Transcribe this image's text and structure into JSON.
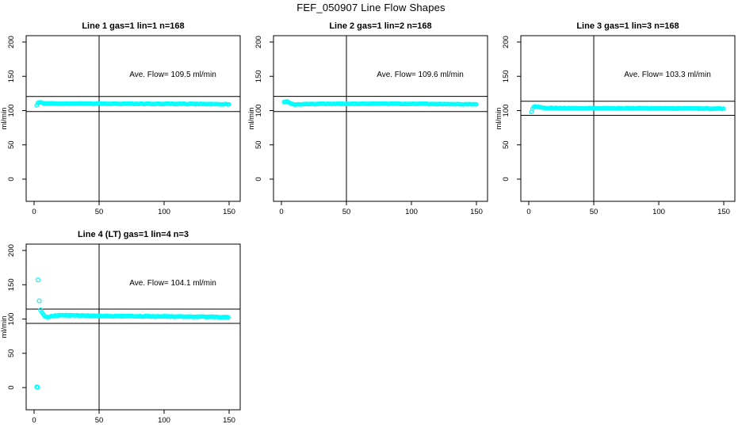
{
  "title": "FEF_050907  Line Flow Shapes",
  "colors": {
    "points": "#00FFFF",
    "axis": "#000000",
    "background": "#FFFFFF"
  },
  "chart_data": {
    "type": "scatter",
    "title": "FEF_050907  Line Flow Shapes",
    "shared_axes": {
      "xlim": [
        0,
        150
      ],
      "ylim": [
        0,
        200
      ],
      "xticks": [
        0,
        50,
        100,
        150
      ],
      "yticks": [
        0,
        50,
        100,
        150,
        200
      ],
      "xlabel": "",
      "ylabel": "ml/min",
      "vline_x": 50,
      "grid": false,
      "marker": "open-circle",
      "marker_color": "#00FFFF"
    },
    "panels": [
      {
        "name": "line-1",
        "title": "Line 1 gas=1 lin=1 n=168",
        "gas": 1,
        "lin": 1,
        "n": 168,
        "ave_flow_ml_min": 109.5,
        "annotation": "Ave. Flow=  109.5  ml/min",
        "hlines": [
          120.5,
          98.6
        ],
        "keyframes": [
          [
            2,
            107.3
          ],
          [
            3,
            111.8
          ],
          [
            5,
            112.3
          ],
          [
            7,
            111.0
          ],
          [
            10,
            110.3
          ],
          [
            20,
            110.2
          ],
          [
            50,
            110.1
          ],
          [
            100,
            109.8
          ],
          [
            130,
            109.6
          ],
          [
            150,
            109.4
          ]
        ],
        "outliers": [],
        "jitter": 0.45
      },
      {
        "name": "line-2",
        "title": "Line 2 gas=1 lin=2 n=168",
        "gas": 1,
        "lin": 2,
        "n": 168,
        "ave_flow_ml_min": 109.6,
        "annotation": "Ave. Flow=  109.6  ml/min",
        "hlines": [
          120.6,
          98.6
        ],
        "keyframes": [
          [
            2,
            112.8
          ],
          [
            4,
            113.3
          ],
          [
            5,
            112.5
          ],
          [
            7,
            110.8
          ],
          [
            9,
            108.9
          ],
          [
            12,
            109.0
          ],
          [
            20,
            109.6
          ],
          [
            40,
            109.9
          ],
          [
            80,
            110.0
          ],
          [
            120,
            109.6
          ],
          [
            150,
            109.1
          ]
        ],
        "outliers": [],
        "jitter": 0.35
      },
      {
        "name": "line-3",
        "title": "Line 3 gas=1 lin=3 n=168",
        "gas": 1,
        "lin": 3,
        "n": 168,
        "ave_flow_ml_min": 103.3,
        "annotation": "Ave. Flow=  103.3  ml/min",
        "hlines": [
          113.6,
          93.0
        ],
        "keyframes": [
          [
            2,
            97.8
          ],
          [
            3,
            103.0
          ],
          [
            4,
            105.6
          ],
          [
            6,
            105.9
          ],
          [
            8,
            105.0
          ],
          [
            12,
            104.0
          ],
          [
            20,
            103.6
          ],
          [
            50,
            103.4
          ],
          [
            100,
            103.2
          ],
          [
            150,
            102.7
          ]
        ],
        "outliers": [],
        "jitter": 0.5
      },
      {
        "name": "line-4",
        "title": "Line 4 (LT) gas=1 lin=4 n=3",
        "gas": 1,
        "lin": 4,
        "n": 3,
        "ave_flow_ml_min": 104.1,
        "annotation": "Ave. Flow=  104.1  ml/min",
        "hlines": [
          114.5,
          93.7
        ],
        "keyframes": [
          [
            6,
            109.8
          ],
          [
            7,
            106.5
          ],
          [
            9,
            102.9
          ],
          [
            11,
            102.4
          ],
          [
            13,
            103.6
          ],
          [
            16,
            105.0
          ],
          [
            20,
            105.6
          ],
          [
            28,
            105.3
          ],
          [
            40,
            104.9
          ],
          [
            60,
            104.4
          ],
          [
            90,
            103.9
          ],
          [
            120,
            103.4
          ],
          [
            150,
            102.9
          ]
        ],
        "outliers": [
          [
            2,
            1.0
          ],
          [
            2.8,
            0.6
          ],
          [
            3,
            157.0
          ],
          [
            4,
            126.5
          ],
          [
            5,
            113.2
          ]
        ],
        "jitter": 0.55
      }
    ]
  }
}
